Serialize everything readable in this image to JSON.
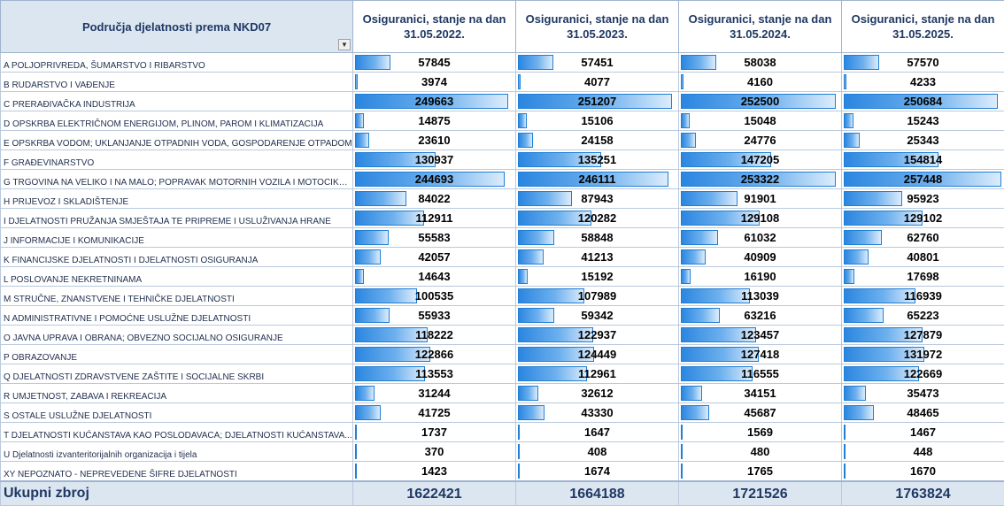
{
  "header": {
    "category": "Područja djelatnosti prema NKD07",
    "columns": [
      "Osiguranici, stanje na dan 31.05.2022.",
      "Osiguranici, stanje na dan 31.05.2023.",
      "Osiguranici, stanje na dan 31.05.2024.",
      "Osiguranici, stanje na dan 31.05.2025."
    ]
  },
  "colors": {
    "bar": "#2b86e0",
    "header_bg": "#dce6f1",
    "header_text": "#1f3864"
  },
  "rows": [
    {
      "label": "A POLJOPRIVREDA, ŠUMARSTVO I RIBARSTVO",
      "values": [
        "57845",
        "57451",
        "58038",
        "57570"
      ]
    },
    {
      "label": "B RUDARSTVO I VAĐENJE",
      "values": [
        "3974",
        "4077",
        "4160",
        "4233"
      ]
    },
    {
      "label": "C PRERAĐIVAČKA INDUSTRIJA",
      "values": [
        "249663",
        "251207",
        "252500",
        "250684"
      ]
    },
    {
      "label": "D OPSKRBA ELEKTRIČNOM ENERGIJOM, PLINOM, PAROM I KLIMATIZACIJA",
      "values": [
        "14875",
        "15106",
        "15048",
        "15243"
      ]
    },
    {
      "label": "E OPSKRBA VODOM; UKLANJANJE OTPADNIH VODA, GOSPODARENJE OTPADOM",
      "values": [
        "23610",
        "24158",
        "24776",
        "25343"
      ]
    },
    {
      "label": "F GRAĐEVINARSTVO",
      "values": [
        "130937",
        "135251",
        "147205",
        "154814"
      ]
    },
    {
      "label": "G TRGOVINA NA VELIKO I NA MALO; POPRAVAK MOTORNIH VOZILA I MOTOCIKALA",
      "values": [
        "244693",
        "246111",
        "253322",
        "257448"
      ]
    },
    {
      "label": "H PRIJEVOZ I SKLADIŠTENJE",
      "values": [
        "84022",
        "87943",
        "91901",
        "95923"
      ]
    },
    {
      "label": "I DJELATNOSTI PRUŽANJA SMJEŠTAJA TE PRIPREME I USLUŽIVANJA HRANE",
      "values": [
        "112911",
        "120282",
        "129108",
        "129102"
      ]
    },
    {
      "label": "J INFORMACIJE I KOMUNIKACIJE",
      "values": [
        "55583",
        "58848",
        "61032",
        "62760"
      ]
    },
    {
      "label": "K FINANCIJSKE DJELATNOSTI I DJELATNOSTI OSIGURANJA",
      "values": [
        "42057",
        "41213",
        "40909",
        "40801"
      ]
    },
    {
      "label": "L POSLOVANJE NEKRETNINAMA",
      "values": [
        "14643",
        "15192",
        "16190",
        "17698"
      ]
    },
    {
      "label": "M STRUČNE, ZNANSTVENE I TEHNIČKE DJELATNOSTI",
      "values": [
        "100535",
        "107989",
        "113039",
        "116939"
      ]
    },
    {
      "label": "N ADMINISTRATIVNE I POMOĆNE USLUŽNE DJELATNOSTI",
      "values": [
        "55933",
        "59342",
        "63216",
        "65223"
      ]
    },
    {
      "label": "O JAVNA UPRAVA I OBRANA; OBVEZNO SOCIJALNO OSIGURANJE",
      "values": [
        "118222",
        "122937",
        "123457",
        "127879"
      ]
    },
    {
      "label": "P OBRAZOVANJE",
      "values": [
        "122866",
        "124449",
        "127418",
        "131972"
      ]
    },
    {
      "label": "Q DJELATNOSTI ZDRAVSTVENE ZAŠTITE I SOCIJALNE SKRBI",
      "values": [
        "113553",
        "112961",
        "116555",
        "122669"
      ]
    },
    {
      "label": "R UMJETNOST, ZABAVA I REKREACIJA",
      "values": [
        "31244",
        "32612",
        "34151",
        "35473"
      ]
    },
    {
      "label": "S OSTALE USLUŽNE DJELATNOSTI",
      "values": [
        "41725",
        "43330",
        "45687",
        "48465"
      ]
    },
    {
      "label": "T DJELATNOSTI KUĆANSTAVA KAO POSLODAVACA; DJELATNOSTI KUĆANSTAVA...",
      "values": [
        "1737",
        "1647",
        "1569",
        "1467"
      ]
    },
    {
      "label": "U Djelatnosti izvanteritorijalnih organizacija i tijela",
      "values": [
        "370",
        "408",
        "480",
        "448"
      ]
    },
    {
      "label": "XY NEPOZNATO - NEPREVEDENE ŠIFRE DJELATNOSTI",
      "values": [
        "1423",
        "1674",
        "1765",
        "1670"
      ]
    }
  ],
  "total": {
    "label": "Ukupni zbroj",
    "values": [
      "1622421",
      "1664188",
      "1721526",
      "1763824"
    ]
  }
}
